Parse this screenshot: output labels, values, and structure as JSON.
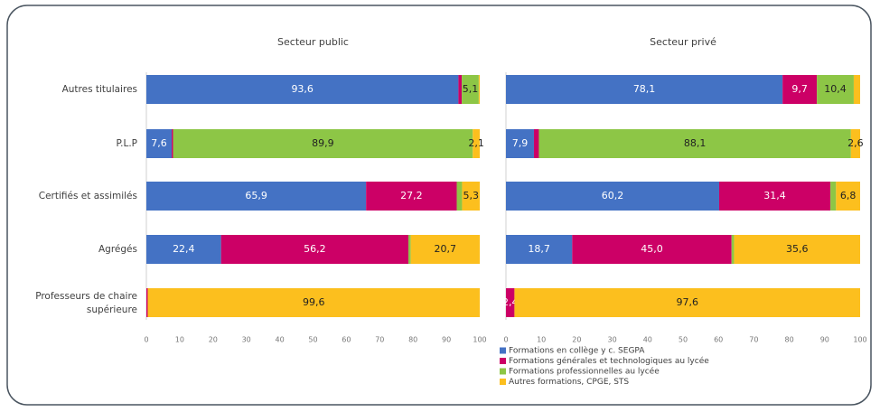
{
  "chart_data": [
    {
      "type": "stacked-bar-horizontal",
      "title": "Secteur public",
      "categories": [
        "Autres titulaires",
        "P.L.P",
        "Certifiés et assimilés",
        "Agrégés",
        "Professeurs de chaire supérieure"
      ],
      "series": [
        {
          "color": "#4472c4",
          "values": [
            93.6,
            7.6,
            65.9,
            22.4,
            0
          ],
          "value_labels": [
            "93,6",
            "7,6",
            "65,9",
            "22,4",
            null
          ]
        },
        {
          "color": "#cc0066",
          "values": [
            1.0,
            0.4,
            27.2,
            56.2,
            0.4
          ],
          "value_labels": [
            null,
            null,
            "27,2",
            "56,2",
            null
          ]
        },
        {
          "color": "#8dc646",
          "values": [
            5.1,
            89.9,
            1.6,
            0.7,
            0
          ],
          "value_labels": [
            "5,1",
            "89,9",
            null,
            null,
            null
          ]
        },
        {
          "color": "#fcbf1e",
          "values": [
            0.3,
            2.1,
            5.3,
            20.7,
            99.6
          ],
          "value_labels": [
            null,
            "2,1",
            "5,3",
            "20,7",
            "99,6"
          ]
        }
      ],
      "xlim": [
        0,
        100
      ],
      "xticks": [
        0,
        10,
        20,
        30,
        40,
        50,
        60,
        70,
        80,
        90,
        100
      ]
    },
    {
      "type": "stacked-bar-horizontal",
      "title": "Secteur privé",
      "series": [
        {
          "name": "Formations en collège y c. SEGPA",
          "color": "#4472c4",
          "values": [
            78.1,
            7.9,
            60.2,
            18.7,
            0
          ],
          "value_labels": [
            "78,1",
            "7,9",
            "60,2",
            "18,7",
            null
          ]
        },
        {
          "name": "Formations générales et technologiques au lycée",
          "color": "#cc0066",
          "values": [
            9.7,
            1.4,
            31.4,
            45.0,
            2.4
          ],
          "value_labels": [
            "9,7",
            null,
            "31,4",
            "45,0",
            "2,4"
          ]
        },
        {
          "name": "Formations professionnelles au lycée",
          "color": "#8dc646",
          "values": [
            10.4,
            88.1,
            1.6,
            0.7,
            0
          ],
          "value_labels": [
            "10,4",
            "88,1",
            null,
            null,
            null
          ]
        },
        {
          "name": "Autres formations, CPGE, STS",
          "color": "#fcbf1e",
          "values": [
            1.8,
            2.6,
            6.8,
            35.6,
            97.6
          ],
          "value_labels": [
            null,
            "2,6",
            "6,8",
            "35,6",
            "97,6"
          ]
        }
      ],
      "xlim": [
        0,
        100
      ],
      "xticks": [
        0,
        10,
        20,
        30,
        40,
        50,
        60,
        70,
        80,
        90,
        100
      ]
    }
  ]
}
